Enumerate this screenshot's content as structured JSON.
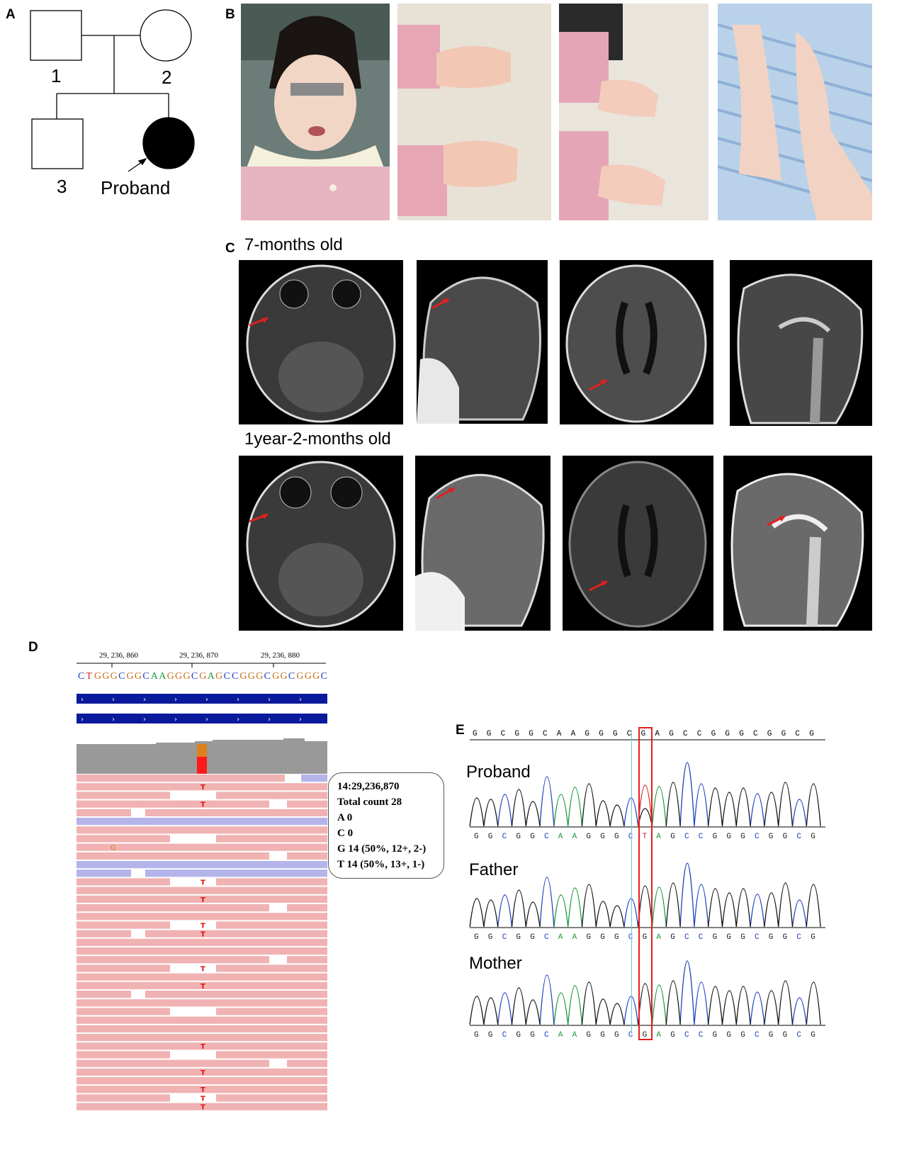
{
  "panels": {
    "A": "A",
    "B": "B",
    "C": "C",
    "D": "D",
    "E": "E"
  },
  "pedigree": {
    "members": [
      "1",
      "2",
      "3"
    ],
    "proband_label": "Proband"
  },
  "mri": {
    "row1_label": "7-months old",
    "row2_label": "1year-2-months old"
  },
  "igv": {
    "ticks": [
      "29, 236, 860",
      "29, 236, 870",
      "29, 236, 880"
    ],
    "reference_sequence": "CTGGGCGGCAAGGGCGAGCCGGGCGGCGGGC",
    "variant_base": "T",
    "mismatch_base": "G",
    "callout": {
      "position": "14:29,236,870",
      "total": "Total count 28",
      "a": "A 0",
      "c": "C 0",
      "g": "G 14 (50%, 12+, 2-)",
      "t": "T 14 (50%, 13+, 1-)"
    }
  },
  "sanger": {
    "reference": "GGCGGCAAGGGCGAGCCGGGCGGCG",
    "tracks": [
      {
        "name": "Proband",
        "calls": "GGCGGCAAGGGCTAGCCGGGCGGCG"
      },
      {
        "name": "Father",
        "calls": "GGCGGCAAGGGCGAGCCGGGCGGCG"
      },
      {
        "name": "Mother",
        "calls": "GGCGGCAAGGGCGAGCCGGGCGGCG"
      }
    ]
  },
  "colors": {
    "A": "#1a9a3a",
    "C": "#2040c0",
    "G": "#111111",
    "T": "#d02020",
    "read_forward": "#f0b2b2",
    "read_reverse": "#b4b4ea",
    "coverage": "#999999",
    "feature_bar": "#0a1a9c",
    "highlight_box": "#e02020"
  }
}
